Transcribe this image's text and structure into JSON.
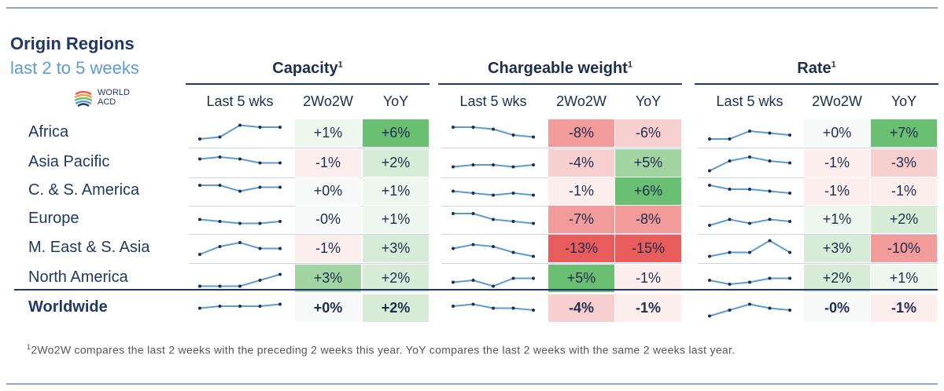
{
  "header": {
    "title": "Origin Regions",
    "subtitle": "last 2 to 5 weeks"
  },
  "logo": {
    "line1": "WORLD",
    "line2": "ACD"
  },
  "groups": [
    {
      "key": "capacity",
      "title": "Capacity",
      "footnote_marker": "1"
    },
    {
      "key": "weight",
      "title": "Chargeable weight",
      "footnote_marker": "1"
    },
    {
      "key": "rate",
      "title": "Rate",
      "footnote_marker": "1"
    }
  ],
  "column_headers": {
    "spark": "Last 5 wks",
    "w2w": "2Wo2W",
    "yoy": "YoY"
  },
  "colors": {
    "green_strong": "#6bbf72",
    "green_mid": "#a3d5a3",
    "green_light": "#d6ecd6",
    "green_pale": "#eef7ee",
    "red_strong": "#e85c5c",
    "red_mid": "#f19b9b",
    "red_light": "#f8cfcf",
    "red_pale": "#fdeeee",
    "neutral": "#f7f9f8",
    "spark_line": "#5b9bd5",
    "spark_dot": "#1f2d4d"
  },
  "chart_data": {
    "type": "table",
    "rows": [
      {
        "region": "Africa",
        "capacity": {
          "w2w": "+1%",
          "yoy": "+6%",
          "w2w_color": "green_pale",
          "yoy_color": "green_strong",
          "trend": [
            2,
            3,
            9,
            8,
            8
          ]
        },
        "weight": {
          "w2w": "-8%",
          "yoy": "-6%",
          "w2w_color": "red_mid",
          "yoy_color": "red_light",
          "trend": [
            8,
            8,
            7,
            4,
            3
          ]
        },
        "rate": {
          "w2w": "+0%",
          "yoy": "+7%",
          "w2w_color": "neutral",
          "yoy_color": "green_strong",
          "trend": [
            2,
            2,
            6,
            5,
            4
          ]
        }
      },
      {
        "region": "Asia Pacific",
        "capacity": {
          "w2w": "-1%",
          "yoy": "+2%",
          "w2w_color": "red_pale",
          "yoy_color": "green_light",
          "trend": [
            7,
            8,
            7,
            5,
            5
          ]
        },
        "weight": {
          "w2w": "-4%",
          "yoy": "+5%",
          "w2w_color": "red_light",
          "yoy_color": "green_mid",
          "trend": [
            3,
            4,
            4,
            3,
            4
          ]
        },
        "rate": {
          "w2w": "-1%",
          "yoy": "-3%",
          "w2w_color": "red_pale",
          "yoy_color": "red_light",
          "trend": [
            1,
            6,
            8,
            6,
            5
          ]
        }
      },
      {
        "region": "C. & S. America",
        "capacity": {
          "w2w": "+0%",
          "yoy": "+1%",
          "w2w_color": "neutral",
          "yoy_color": "green_pale",
          "trend": [
            8,
            8,
            5,
            7,
            7
          ]
        },
        "weight": {
          "w2w": "-1%",
          "yoy": "+6%",
          "w2w_color": "red_pale",
          "yoy_color": "green_strong",
          "trend": [
            5,
            4,
            3,
            4,
            3
          ]
        },
        "rate": {
          "w2w": "-1%",
          "yoy": "-1%",
          "w2w_color": "red_pale",
          "yoy_color": "red_pale",
          "trend": [
            8,
            6,
            6,
            5,
            4
          ]
        }
      },
      {
        "region": "Europe",
        "capacity": {
          "w2w": "-0%",
          "yoy": "+1%",
          "w2w_color": "neutral",
          "yoy_color": "green_pale",
          "trend": [
            5,
            4,
            3,
            3,
            4
          ]
        },
        "weight": {
          "w2w": "-7%",
          "yoy": "-8%",
          "w2w_color": "red_mid",
          "yoy_color": "red_mid",
          "trend": [
            8,
            8,
            5,
            4,
            3
          ]
        },
        "rate": {
          "w2w": "+1%",
          "yoy": "+2%",
          "w2w_color": "green_pale",
          "yoy_color": "green_light",
          "trend": [
            2,
            5,
            3,
            5,
            4
          ]
        }
      },
      {
        "region": "M. East & S. Asia",
        "capacity": {
          "w2w": "-1%",
          "yoy": "+3%",
          "w2w_color": "red_pale",
          "yoy_color": "green_light",
          "trend": [
            2,
            6,
            8,
            5,
            5
          ]
        },
        "weight": {
          "w2w": "-13%",
          "yoy": "-15%",
          "w2w_color": "red_strong",
          "yoy_color": "red_strong",
          "trend": [
            5,
            7,
            6,
            3,
            1
          ]
        },
        "rate": {
          "w2w": "+3%",
          "yoy": "-10%",
          "w2w_color": "green_light",
          "yoy_color": "red_mid",
          "trend": [
            1,
            3,
            3,
            9,
            3
          ]
        }
      },
      {
        "region": "North America",
        "capacity": {
          "w2w": "+3%",
          "yoy": "+2%",
          "w2w_color": "green_mid",
          "yoy_color": "green_light",
          "trend": [
            1,
            1,
            1,
            4,
            7
          ]
        },
        "weight": {
          "w2w": "+5%",
          "yoy": "-1%",
          "w2w_color": "green_strong",
          "yoy_color": "red_pale",
          "trend": [
            3,
            4,
            1,
            5,
            5
          ]
        },
        "rate": {
          "w2w": "+2%",
          "yoy": "+1%",
          "w2w_color": "green_light",
          "yoy_color": "green_pale",
          "trend": [
            4,
            2,
            3,
            5,
            5
          ]
        }
      },
      {
        "region": "Worldwide",
        "capacity": {
          "w2w": "+0%",
          "yoy": "+2%",
          "w2w_color": "neutral",
          "yoy_color": "green_light",
          "trend": [
            5,
            6,
            6,
            6,
            7
          ]
        },
        "weight": {
          "w2w": "-4%",
          "yoy": "-1%",
          "w2w_color": "red_light",
          "yoy_color": "red_pale",
          "trend": [
            6,
            7,
            5,
            5,
            4
          ]
        },
        "rate": {
          "w2w": "-0%",
          "yoy": "-1%",
          "w2w_color": "neutral",
          "yoy_color": "red_pale",
          "trend": [
            1,
            4,
            7,
            5,
            4
          ]
        }
      }
    ]
  },
  "footnote": {
    "marker": "1",
    "text": "2Wo2W compares the last 2 weeks with the preceding 2 weeks this year. YoY compares the last 2 weeks with the same 2 weeks last year."
  }
}
